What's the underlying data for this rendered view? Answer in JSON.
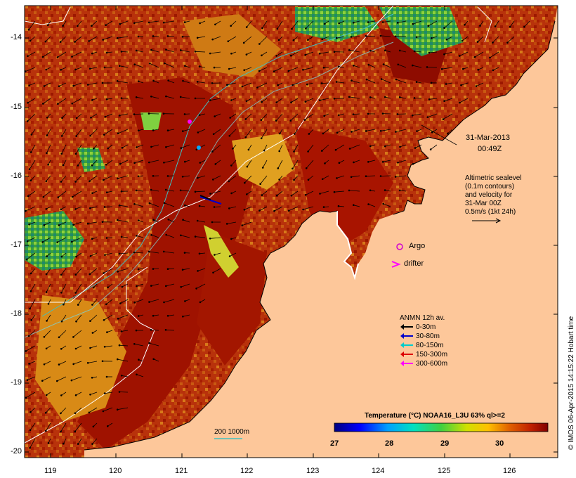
{
  "map": {
    "lon_ticks": [
      "119",
      "120",
      "121",
      "122",
      "123",
      "124",
      "125",
      "126"
    ],
    "lat_ticks": [
      "-14",
      "-15",
      "-16",
      "-17",
      "-18",
      "-19",
      "-20"
    ],
    "lon_range": [
      118.65,
      126.7
    ],
    "lat_range": [
      -20.05,
      -13.55
    ],
    "date_label": "31-Mar-2013",
    "time_label": "00:49Z",
    "altimetry_note": [
      "Altimetric sealevel",
      "(0.1m contours)",
      "and velocity for",
      "31-Mar 00Z",
      "0.5m/s (1kt 24h)"
    ],
    "argo_label": "Argo",
    "drifter_label": "drifter",
    "isobath_label": "200  1000m",
    "credit": "© IMOS 06-Apr-2015 14:15:22 Hobart time"
  },
  "current_legend": {
    "title": "ANMN 12h av.",
    "items": [
      {
        "label": "0-30m",
        "color": "#000000"
      },
      {
        "label": "30-80m",
        "color": "#0000cc"
      },
      {
        "label": "80-150m",
        "color": "#00cccc"
      },
      {
        "label": "150-300m",
        "color": "#dd0000"
      },
      {
        "label": "300-600m",
        "color": "#ff00ff"
      }
    ]
  },
  "colorbar": {
    "title": "Temperature (°C) NOAA16_L3U 63% ql>=2",
    "ticks": [
      "27",
      "28",
      "29",
      "30"
    ],
    "range": [
      27,
      30.9
    ]
  },
  "colors": {
    "land": "#fdc79a",
    "warm": "#a41700",
    "cool": "#1f7a2a"
  }
}
